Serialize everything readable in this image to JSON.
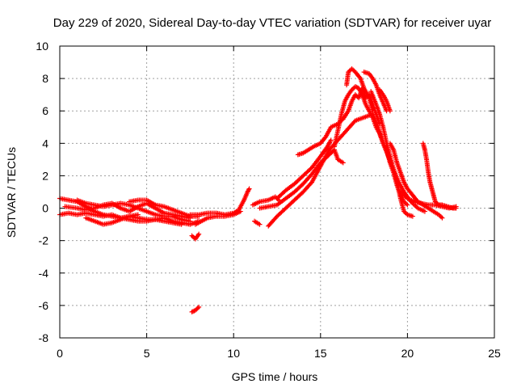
{
  "chart_data": {
    "type": "scatter",
    "title": "Day 229 of 2020, Sidereal Day-to-day VTEC variation (SDTVAR) for receiver uyar",
    "xlabel": "GPS time / hours",
    "ylabel": "SDTVAR / TECUs",
    "xlim": [
      0,
      25
    ],
    "ylim": [
      -8,
      10
    ],
    "xticks": [
      0,
      5,
      10,
      15,
      20,
      25
    ],
    "yticks": [
      -8,
      -6,
      -4,
      -2,
      0,
      2,
      4,
      6,
      8,
      10
    ],
    "grid": true,
    "marker": "+",
    "series": [
      {
        "name": "SDTVAR",
        "color": "#ff0000",
        "tracks": [
          [
            [
              0.0,
              0.6
            ],
            [
              0.5,
              0.5
            ],
            [
              1.0,
              0.4
            ],
            [
              1.5,
              0.1
            ],
            [
              2.0,
              -0.2
            ],
            [
              2.5,
              -0.4
            ],
            [
              3.0,
              -0.5
            ],
            [
              3.5,
              -0.6
            ],
            [
              4.0,
              -0.5
            ],
            [
              4.5,
              -0.6
            ],
            [
              5.0,
              -0.7
            ],
            [
              5.5,
              -0.7
            ],
            [
              6.0,
              -0.8
            ],
            [
              6.5,
              -0.9
            ],
            [
              7.0,
              -1.0
            ]
          ],
          [
            [
              0.0,
              -0.4
            ],
            [
              0.5,
              -0.3
            ],
            [
              1.0,
              -0.4
            ],
            [
              1.5,
              -0.3
            ],
            [
              2.0,
              -0.4
            ],
            [
              2.5,
              -0.5
            ],
            [
              3.0,
              -0.4
            ],
            [
              3.5,
              -0.6
            ],
            [
              4.0,
              -0.7
            ],
            [
              4.5,
              -0.8
            ],
            [
              5.0,
              -0.8
            ],
            [
              5.5,
              -0.7
            ],
            [
              6.0,
              -0.6
            ],
            [
              6.5,
              -0.8
            ],
            [
              7.0,
              -0.9
            ],
            [
              7.5,
              -1.0
            ],
            [
              8.0,
              -0.8
            ]
          ],
          [
            [
              0.3,
              0.1
            ],
            [
              1.0,
              0.0
            ],
            [
              1.5,
              -0.1
            ],
            [
              2.0,
              0.0
            ],
            [
              2.5,
              0.2
            ],
            [
              3.0,
              0.3
            ],
            [
              3.5,
              0.0
            ],
            [
              4.0,
              -0.2
            ],
            [
              4.5,
              0.1
            ],
            [
              5.0,
              0.3
            ],
            [
              5.5,
              0.0
            ],
            [
              6.0,
              -0.3
            ],
            [
              6.5,
              -0.4
            ],
            [
              7.0,
              -0.5
            ],
            [
              7.5,
              -0.6
            ]
          ],
          [
            [
              1.0,
              0.5
            ],
            [
              1.5,
              0.3
            ],
            [
              2.0,
              0.2
            ],
            [
              2.5,
              0.1
            ],
            [
              3.0,
              0.2
            ],
            [
              3.5,
              0.3
            ],
            [
              4.0,
              0.2
            ],
            [
              4.5,
              0.0
            ],
            [
              5.0,
              -0.2
            ],
            [
              5.5,
              -0.4
            ],
            [
              6.0,
              -0.5
            ],
            [
              6.5,
              -0.5
            ],
            [
              7.0,
              -0.7
            ],
            [
              7.5,
              -0.8
            ]
          ],
          [
            [
              1.5,
              -0.6
            ],
            [
              2.0,
              -0.8
            ],
            [
              2.5,
              -1.0
            ],
            [
              3.0,
              -0.9
            ],
            [
              3.5,
              -0.7
            ],
            [
              4.0,
              -0.5
            ],
            [
              4.5,
              -0.4
            ]
          ],
          [
            [
              4.0,
              0.4
            ],
            [
              4.5,
              0.5
            ],
            [
              5.0,
              0.5
            ],
            [
              5.5,
              0.2
            ],
            [
              6.0,
              0.1
            ],
            [
              6.5,
              -0.1
            ],
            [
              7.0,
              -0.3
            ],
            [
              7.5,
              -0.5
            ],
            [
              8.0,
              -0.5
            ]
          ],
          [
            [
              7.6,
              -1.7
            ],
            [
              7.8,
              -1.9
            ],
            [
              8.0,
              -1.6
            ]
          ],
          [
            [
              7.6,
              -6.4
            ],
            [
              7.8,
              -6.3
            ],
            [
              8.0,
              -6.1
            ]
          ],
          [
            [
              7.5,
              -0.4
            ],
            [
              8.0,
              -0.4
            ],
            [
              8.5,
              -0.3
            ],
            [
              9.0,
              -0.3
            ],
            [
              9.5,
              -0.4
            ],
            [
              10.0,
              -0.3
            ],
            [
              10.3,
              -0.1
            ],
            [
              10.6,
              0.5
            ],
            [
              10.8,
              1.0
            ],
            [
              10.9,
              1.2
            ]
          ],
          [
            [
              7.8,
              -1.0
            ],
            [
              8.5,
              -0.6
            ],
            [
              9.0,
              -0.5
            ],
            [
              9.5,
              -0.5
            ],
            [
              10.0,
              -0.4
            ],
            [
              10.4,
              -0.2
            ]
          ],
          [
            [
              11.1,
              0.2
            ],
            [
              11.5,
              0.4
            ],
            [
              12.0,
              0.5
            ],
            [
              12.4,
              0.7
            ],
            [
              12.6,
              0.5
            ]
          ],
          [
            [
              11.2,
              -0.8
            ],
            [
              11.5,
              -1.0
            ]
          ],
          [
            [
              12.0,
              -1.1
            ],
            [
              12.5,
              -0.5
            ],
            [
              13.0,
              0.0
            ],
            [
              13.5,
              0.5
            ],
            [
              14.0,
              1.0
            ],
            [
              14.5,
              1.6
            ],
            [
              15.0,
              2.6
            ],
            [
              15.5,
              3.6
            ],
            [
              16.0,
              4.2
            ],
            [
              16.5,
              4.8
            ],
            [
              17.0,
              5.4
            ],
            [
              17.5,
              5.6
            ],
            [
              18.0,
              5.8
            ],
            [
              18.3,
              5.0
            ],
            [
              18.6,
              4.0
            ],
            [
              18.9,
              3.2
            ],
            [
              19.2,
              2.4
            ],
            [
              19.5,
              1.6
            ],
            [
              19.8,
              1.0
            ],
            [
              20.2,
              0.4
            ],
            [
              20.6,
              0.0
            ],
            [
              21.0,
              -0.2
            ]
          ],
          [
            [
              11.5,
              0.0
            ],
            [
              12.0,
              0.1
            ],
            [
              12.5,
              0.2
            ],
            [
              13.0,
              0.6
            ],
            [
              13.5,
              1.0
            ],
            [
              14.0,
              1.5
            ],
            [
              14.5,
              2.1
            ],
            [
              15.0,
              2.8
            ],
            [
              15.5,
              3.3
            ],
            [
              15.8,
              3.6
            ],
            [
              16.0,
              3.0
            ],
            [
              16.3,
              2.8
            ]
          ],
          [
            [
              12.5,
              0.6
            ],
            [
              13.0,
              1.1
            ],
            [
              13.5,
              1.5
            ],
            [
              14.0,
              2.0
            ],
            [
              14.5,
              2.5
            ],
            [
              15.0,
              3.2
            ],
            [
              15.4,
              3.8
            ],
            [
              15.6,
              4.2
            ]
          ],
          [
            [
              13.7,
              3.3
            ],
            [
              14.0,
              3.4
            ],
            [
              14.3,
              3.6
            ],
            [
              14.6,
              3.8
            ],
            [
              15.0,
              4.0
            ],
            [
              15.3,
              4.4
            ],
            [
              15.6,
              5.0
            ],
            [
              16.0,
              5.2
            ],
            [
              16.3,
              5.5
            ],
            [
              16.6,
              6.0
            ],
            [
              16.8,
              6.6
            ],
            [
              17.0,
              7.0
            ],
            [
              17.2,
              6.8
            ],
            [
              17.4,
              7.4
            ],
            [
              17.6,
              6.8
            ],
            [
              17.8,
              7.0
            ],
            [
              18.0,
              6.4
            ],
            [
              18.2,
              5.8
            ],
            [
              18.4,
              5.2
            ]
          ],
          [
            [
              15.8,
              3.8
            ],
            [
              16.0,
              4.8
            ],
            [
              16.2,
              5.8
            ],
            [
              16.4,
              6.6
            ],
            [
              16.6,
              7.0
            ],
            [
              16.8,
              7.3
            ],
            [
              17.0,
              7.5
            ],
            [
              17.2,
              7.4
            ],
            [
              17.4,
              7.0
            ],
            [
              17.6,
              6.4
            ],
            [
              17.8,
              6.0
            ],
            [
              18.0,
              5.6
            ],
            [
              18.2,
              5.0
            ],
            [
              18.4,
              4.6
            ],
            [
              18.6,
              4.0
            ],
            [
              18.8,
              3.6
            ],
            [
              19.0,
              2.8
            ],
            [
              19.2,
              2.2
            ],
            [
              19.4,
              1.4
            ],
            [
              19.6,
              0.8
            ],
            [
              19.8,
              0.4
            ],
            [
              20.0,
              0.2
            ]
          ],
          [
            [
              16.5,
              7.6
            ],
            [
              16.6,
              8.4
            ],
            [
              16.8,
              8.6
            ],
            [
              17.0,
              8.4
            ],
            [
              17.3,
              8.0
            ],
            [
              17.5,
              7.4
            ],
            [
              17.8,
              6.8
            ],
            [
              18.0,
              6.0
            ]
          ],
          [
            [
              17.5,
              8.4
            ],
            [
              17.8,
              8.3
            ],
            [
              18.0,
              8.0
            ],
            [
              18.2,
              7.6
            ],
            [
              18.4,
              7.0
            ],
            [
              18.6,
              6.5
            ],
            [
              18.8,
              6.0
            ]
          ],
          [
            [
              17.9,
              7.2
            ],
            [
              18.2,
              6.4
            ],
            [
              18.4,
              5.8
            ],
            [
              18.6,
              5.0
            ],
            [
              18.8,
              4.0
            ],
            [
              19.0,
              3.2
            ],
            [
              19.2,
              2.4
            ],
            [
              19.4,
              1.6
            ],
            [
              19.6,
              0.6
            ],
            [
              19.8,
              -0.2
            ],
            [
              20.0,
              -0.4
            ],
            [
              20.3,
              -0.5
            ]
          ],
          [
            [
              18.4,
              7.3
            ],
            [
              18.6,
              7.0
            ],
            [
              18.8,
              6.6
            ],
            [
              19.0,
              6.0
            ]
          ],
          [
            [
              19.0,
              4.0
            ],
            [
              19.2,
              3.6
            ],
            [
              19.4,
              2.8
            ],
            [
              19.6,
              2.2
            ],
            [
              19.8,
              1.6
            ],
            [
              20.0,
              1.2
            ],
            [
              20.3,
              0.8
            ],
            [
              20.6,
              0.4
            ],
            [
              20.9,
              0.2
            ],
            [
              21.2,
              0.0
            ],
            [
              21.5,
              -0.2
            ],
            [
              21.8,
              -0.4
            ],
            [
              22.0,
              -0.6
            ]
          ],
          [
            [
              19.6,
              1.0
            ],
            [
              20.0,
              0.6
            ],
            [
              20.4,
              0.4
            ],
            [
              20.8,
              0.3
            ],
            [
              21.2,
              0.2
            ],
            [
              21.6,
              0.2
            ],
            [
              22.0,
              0.1
            ],
            [
              22.4,
              0.0
            ],
            [
              22.8,
              0.1
            ]
          ],
          [
            [
              20.9,
              4.0
            ],
            [
              21.0,
              3.6
            ],
            [
              21.1,
              3.0
            ],
            [
              21.2,
              2.2
            ],
            [
              21.3,
              1.6
            ],
            [
              21.4,
              1.2
            ],
            [
              21.5,
              0.8
            ],
            [
              21.6,
              0.4
            ],
            [
              21.8,
              0.2
            ],
            [
              22.0,
              0.2
            ],
            [
              22.3,
              0.1
            ],
            [
              22.6,
              0.0
            ],
            [
              22.8,
              0.0
            ]
          ]
        ]
      }
    ]
  }
}
